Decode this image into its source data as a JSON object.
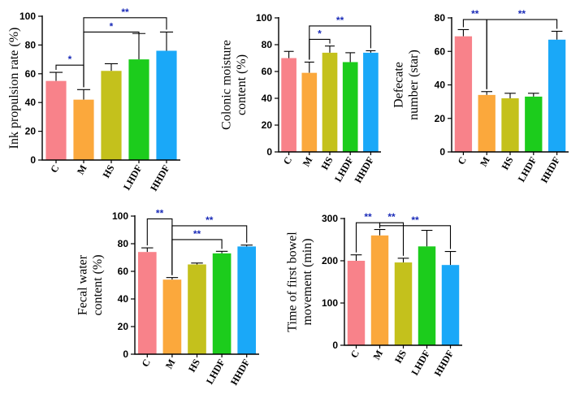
{
  "chart_data": [
    {
      "type": "bar",
      "ylabel": "Ink propulsion rate (%)",
      "ylim": [
        0,
        100
      ],
      "yticks": [
        0,
        20,
        40,
        60,
        80,
        100
      ],
      "categories": [
        "C",
        "M",
        "HS",
        "LHDF",
        "HHDF"
      ],
      "values": [
        55,
        42,
        62,
        70,
        76
      ],
      "errors": [
        6,
        7,
        5,
        18,
        13
      ],
      "colors": [
        "#f8828a",
        "#fba83c",
        "#c4c11c",
        "#1ccc1c",
        "#1aa8f8"
      ],
      "significance": [
        {
          "from": 0,
          "to": 1,
          "label": "*",
          "level": 66
        },
        {
          "from": 1,
          "to": 3,
          "label": "*",
          "level": 89
        },
        {
          "from": 1,
          "to": 4,
          "label": "**",
          "level": 99
        }
      ]
    },
    {
      "type": "bar",
      "ylabel": "Colonic moisture content (%)",
      "ylim": [
        0,
        100
      ],
      "yticks": [
        0,
        20,
        40,
        60,
        80,
        100
      ],
      "categories": [
        "C",
        "M",
        "HS",
        "LHDF",
        "HHDF"
      ],
      "values": [
        70,
        59,
        74,
        67,
        74
      ],
      "errors": [
        5,
        8,
        5,
        7,
        1.5
      ],
      "colors": [
        "#f8828a",
        "#fba83c",
        "#c4c11c",
        "#1ccc1c",
        "#1aa8f8"
      ],
      "significance": [
        {
          "from": 1,
          "to": 2,
          "label": "*",
          "level": 84
        },
        {
          "from": 1,
          "to": 4,
          "label": "**",
          "level": 94
        }
      ]
    },
    {
      "type": "bar",
      "ylabel": "Defecate number (star)",
      "ylim": [
        0,
        80
      ],
      "yticks": [
        0,
        20,
        40,
        60,
        80
      ],
      "categories": [
        "C",
        "M",
        "HS",
        "LHDF",
        "HHDF"
      ],
      "values": [
        69,
        34,
        32,
        33,
        67
      ],
      "errors": [
        4,
        2,
        3,
        2,
        5
      ],
      "colors": [
        "#f8828a",
        "#fba83c",
        "#c4c11c",
        "#1ccc1c",
        "#1aa8f8"
      ],
      "significance": [
        {
          "from": 0,
          "to": 1,
          "label": "**",
          "level": 79
        },
        {
          "from": 1,
          "to": 4,
          "label": "**",
          "level": 79
        }
      ]
    },
    {
      "type": "bar",
      "ylabel": "Fecal water content (%)",
      "ylim": [
        0,
        100
      ],
      "yticks": [
        0,
        20,
        40,
        60,
        80,
        100
      ],
      "categories": [
        "C",
        "M",
        "HS",
        "LHDF",
        "HHDF"
      ],
      "values": [
        74,
        54,
        65,
        73,
        78
      ],
      "errors": [
        3,
        1.5,
        1,
        1.5,
        1
      ],
      "colors": [
        "#f8828a",
        "#fba83c",
        "#c4c11c",
        "#1ccc1c",
        "#1aa8f8"
      ],
      "significance": [
        {
          "from": 0,
          "to": 1,
          "label": "**",
          "level": 98
        },
        {
          "from": 1,
          "to": 3,
          "label": "**",
          "level": 83
        },
        {
          "from": 1,
          "to": 4,
          "label": "**",
          "level": 93
        }
      ]
    },
    {
      "type": "bar",
      "ylabel": "Time of first bowel movement (min)",
      "ylim": [
        0,
        300
      ],
      "yticks": [
        0,
        100,
        200,
        300
      ],
      "categories": [
        "C",
        "M",
        "HS",
        "LHDF",
        "HHDF"
      ],
      "values": [
        200,
        260,
        196,
        234,
        190
      ],
      "errors": [
        14,
        14,
        10,
        38,
        32
      ],
      "colors": [
        "#f8828a",
        "#fba83c",
        "#c4c11c",
        "#1ccc1c",
        "#1aa8f8"
      ],
      "significance": [
        {
          "from": 0,
          "to": 1,
          "label": "**",
          "level": 290
        },
        {
          "from": 1,
          "to": 2,
          "label": "**",
          "level": 290
        },
        {
          "from": 1,
          "to": 4,
          "label": "**",
          "level": 283
        }
      ]
    }
  ]
}
